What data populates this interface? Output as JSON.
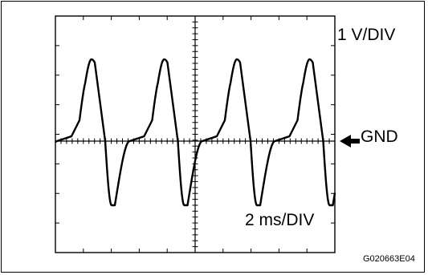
{
  "labels": {
    "vertical_scale": "1 V/DIV",
    "ground": "GND",
    "time_scale": "2 ms/DIV",
    "figure_code": "G020663E04"
  },
  "colors": {
    "ink": "#000000",
    "background": "#ffffff"
  },
  "icons": {
    "ground_marker": "left-arrow-icon"
  }
}
